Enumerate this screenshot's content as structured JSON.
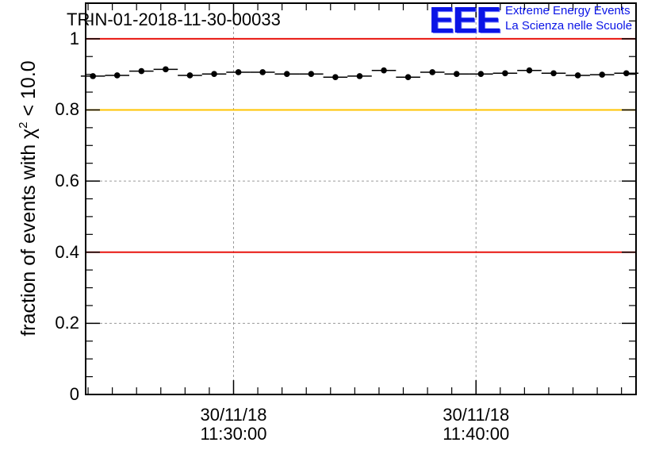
{
  "header": {
    "title": "TRIN-01-2018-11-30-00033",
    "logo_mark": "EEE",
    "logo_line1": "Extreme Energy Events",
    "logo_line2": "La Scienza nelle Scuole"
  },
  "chart_data": {
    "type": "scatter",
    "title": "TRIN-01-2018-11-30-00033",
    "ylabel_main": "fraction of events with χ",
    "ylabel_sup": "2",
    "ylabel_tail": " < 10.0",
    "ylim": [
      0,
      1.1
    ],
    "yticks": [
      0,
      0.2,
      0.4,
      0.6,
      0.8,
      1
    ],
    "ytick_labels": [
      "0",
      "0.2",
      "0.4",
      "0.6",
      "0.8",
      "1"
    ],
    "xlim_minutes": [
      23.9,
      46.6
    ],
    "xticks": [
      {
        "minute": 30,
        "date": "30/11/18",
        "time": "11:30:00"
      },
      {
        "minute": 40,
        "date": "30/11/18",
        "time": "11:40:00"
      }
    ],
    "reference_lines": [
      {
        "y": 1.0,
        "color": "#e8150f"
      },
      {
        "y": 0.8,
        "color": "#ffc400"
      },
      {
        "y": 0.4,
        "color": "#e8150f"
      }
    ],
    "grid": true,
    "bin_width_minutes": 1,
    "x_minutes": [
      24.2,
      25.2,
      26.2,
      27.2,
      28.2,
      29.2,
      30.2,
      31.2,
      32.2,
      33.2,
      34.2,
      35.2,
      36.2,
      37.2,
      38.2,
      39.2,
      40.2,
      41.2,
      42.2,
      43.2,
      44.2,
      45.2,
      46.2
    ],
    "values": [
      0.895,
      0.897,
      0.909,
      0.914,
      0.897,
      0.901,
      0.906,
      0.906,
      0.901,
      0.901,
      0.892,
      0.895,
      0.911,
      0.892,
      0.906,
      0.901,
      0.901,
      0.903,
      0.911,
      0.903,
      0.897,
      0.899,
      0.903
    ],
    "series_color": "#000000"
  }
}
